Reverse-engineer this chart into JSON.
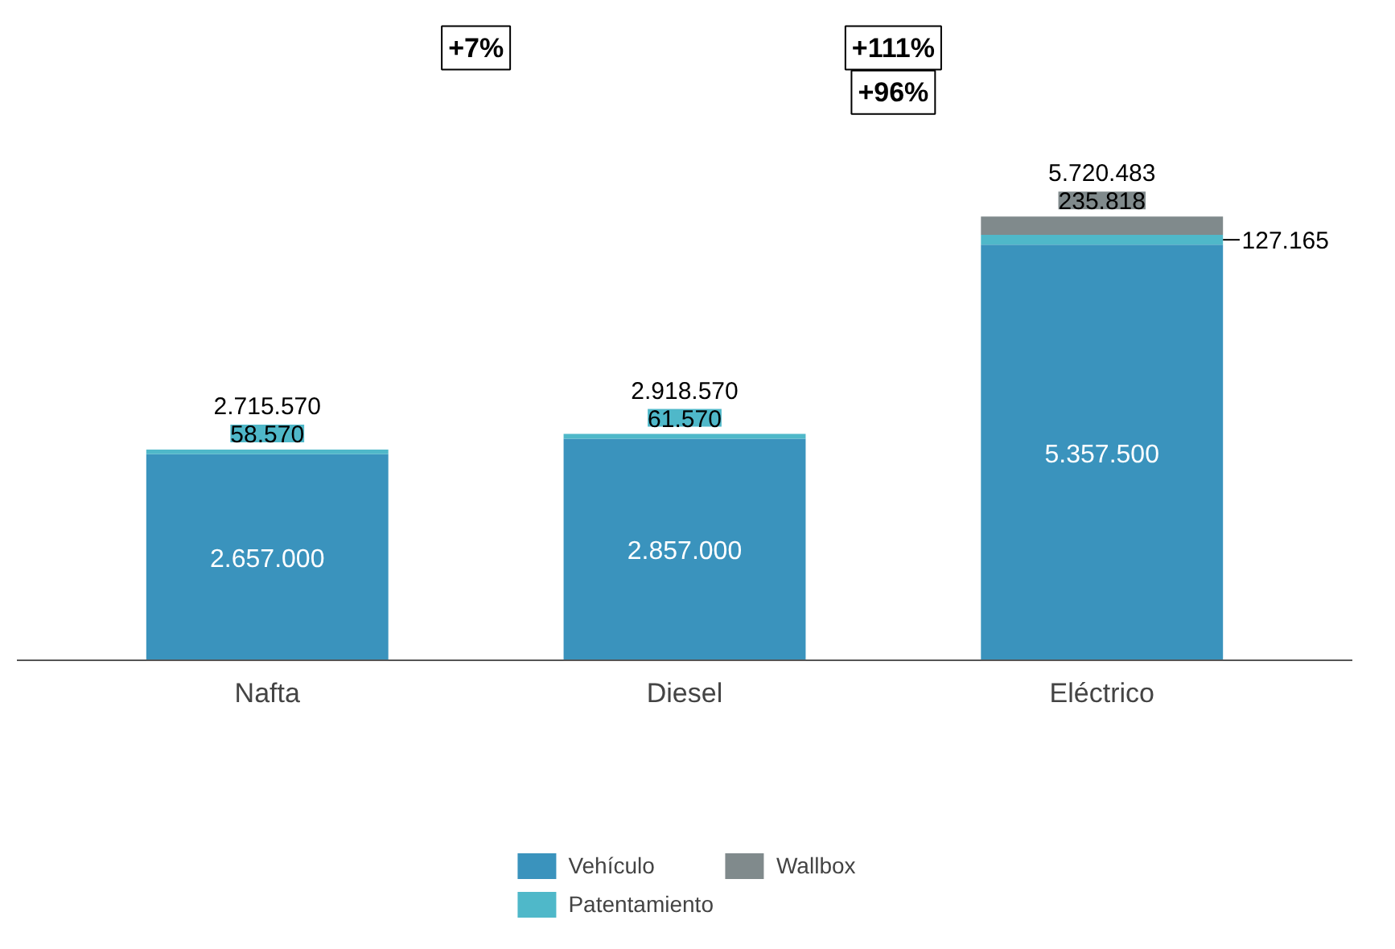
{
  "chart_data": {
    "type": "bar",
    "stacked": true,
    "categories": [
      "Nafta",
      "Diesel",
      "Eléctrico"
    ],
    "series": [
      {
        "name": "Vehículo",
        "color": "#3a93bd",
        "values": [
          2657000,
          2857000,
          5357500
        ],
        "value_labels": [
          "2.657.000",
          "2.857.000",
          "5.357.500"
        ]
      },
      {
        "name": "Patentamiento",
        "color": "#4fb8c9",
        "values": [
          58570,
          61570,
          127165
        ],
        "value_labels": [
          "58.570",
          "61.570",
          "127.165"
        ]
      },
      {
        "name": "Wallbox",
        "color": "#808a8c",
        "values": [
          null,
          null,
          235818
        ],
        "value_labels": [
          null,
          null,
          "235.818"
        ]
      }
    ],
    "totals": [
      "2.715.570",
      "2.918.570",
      "5.720.483"
    ],
    "annotations": [
      "+7%",
      "+111%",
      "+96%"
    ],
    "legend": "bottom"
  }
}
